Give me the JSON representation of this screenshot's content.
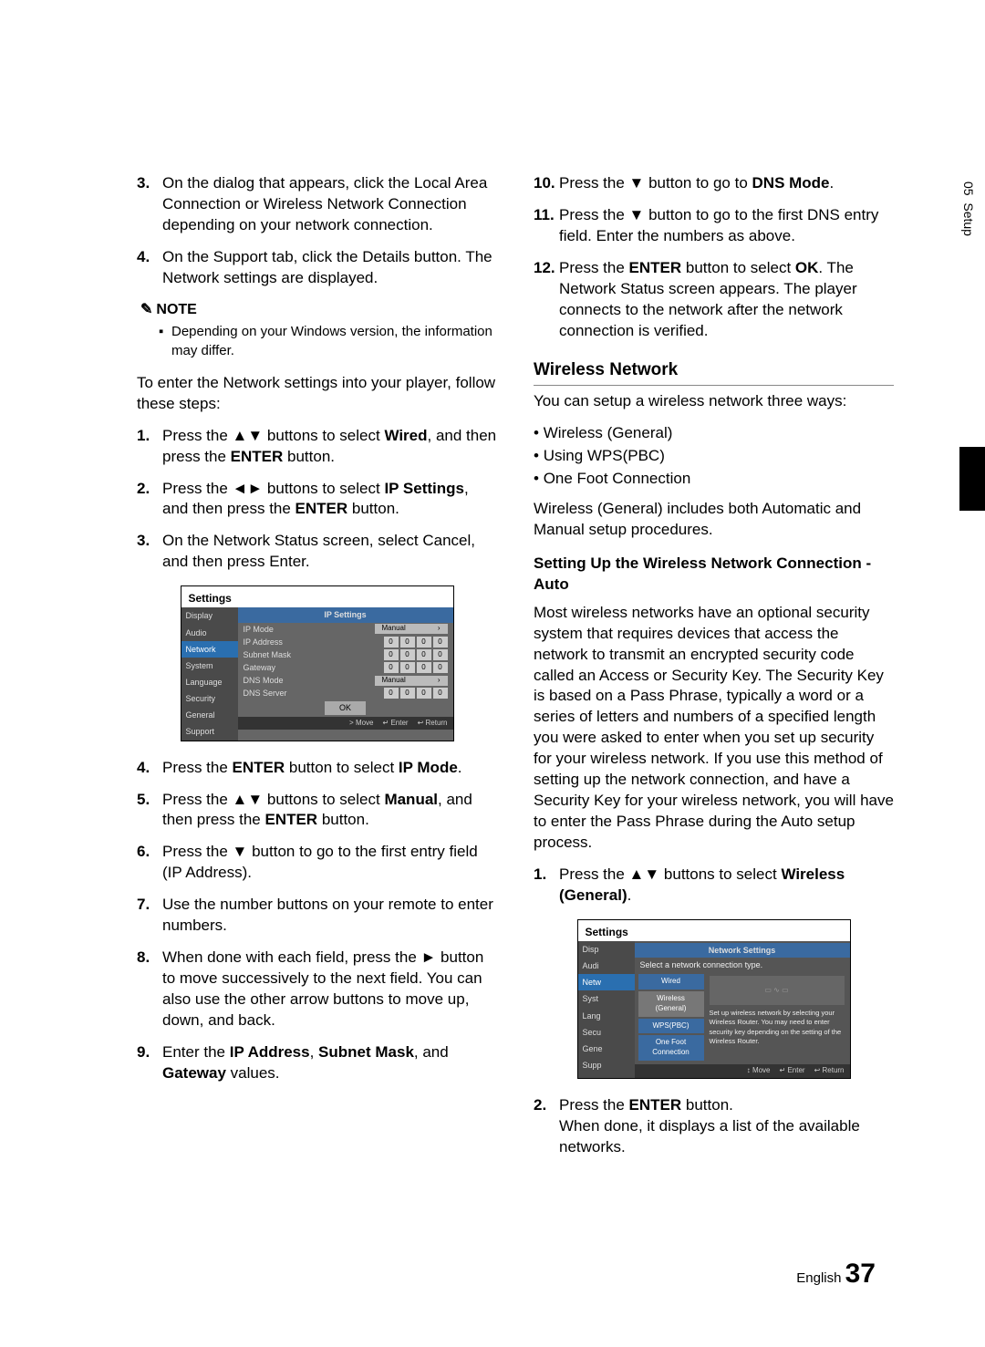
{
  "sidebar": {
    "section_num": "05",
    "section_name": "Setup"
  },
  "left": {
    "items3_4": [
      {
        "n": "3.",
        "t": "On the dialog that appears, click the Local Area Connection or Wireless Network Connection depending on your network connection."
      },
      {
        "n": "4.",
        "t": "On the Support tab, click the Details button. The Network settings are displayed."
      }
    ],
    "note_label": "NOTE",
    "note_text": "Depending on your Windows version, the information may differ.",
    "intro": "To enter the Network settings into your player, follow these steps:",
    "steps_a": [
      {
        "n": "1.",
        "html": "Press the ▲▼ buttons to select <b>Wired</b>, and then press the <b>ENTER</b> button."
      },
      {
        "n": "2.",
        "html": "Press the ◄► buttons to select <b>IP Settings</b>, and then press the <b>ENTER</b> button."
      },
      {
        "n": "3.",
        "html": "On the Network Status screen, select Cancel, and then press Enter."
      }
    ],
    "panel1": {
      "title": "Settings",
      "side": [
        "Display",
        "Audio",
        "Network",
        "System",
        "Language",
        "Security",
        "General",
        "Support"
      ],
      "side_active_index": 2,
      "banner": "IP Settings",
      "rows": [
        {
          "lbl": "IP Mode",
          "type": "manual",
          "val": "Manual"
        },
        {
          "lbl": "IP Address",
          "type": "octets",
          "o": [
            "0",
            "0",
            "0",
            "0"
          ]
        },
        {
          "lbl": "Subnet Mask",
          "type": "octets",
          "o": [
            "0",
            "0",
            "0",
            "0"
          ]
        },
        {
          "lbl": "Gateway",
          "type": "octets",
          "o": [
            "0",
            "0",
            "0",
            "0"
          ]
        },
        {
          "lbl": "DNS Mode",
          "type": "manual",
          "val": "Manual"
        },
        {
          "lbl": "DNS Server",
          "type": "octets",
          "o": [
            "0",
            "0",
            "0",
            "0"
          ]
        }
      ],
      "ok": "OK",
      "foot": [
        "> Move",
        "↵ Enter",
        "↩ Return"
      ]
    },
    "steps_b": [
      {
        "n": "4.",
        "html": "Press the <b>ENTER</b> button to select <b>IP Mode</b>."
      },
      {
        "n": "5.",
        "html": "Press the ▲▼ buttons to select <b>Manual</b>, and then press the <b>ENTER</b> button."
      },
      {
        "n": "6.",
        "html": "Press the ▼ button to go to the first entry field (IP Address)."
      },
      {
        "n": "7.",
        "html": "Use the number buttons on your remote to enter numbers."
      },
      {
        "n": "8.",
        "html": "When done with each field, press the ► button to move successively to the next field. You can also use the other arrow buttons to move up, down, and back."
      },
      {
        "n": "9.",
        "html": "Enter the <b>IP Address</b>, <b>Subnet Mask</b>, and <b>Gateway</b> values."
      }
    ]
  },
  "right": {
    "steps_c": [
      {
        "n": "10.",
        "html": "Press the ▼ button to go to <b>DNS Mode</b>."
      },
      {
        "n": "11.",
        "html": "Press the ▼ button to go to the first DNS entry field. Enter the numbers as above."
      },
      {
        "n": "12.",
        "html": "Press the <b>ENTER</b> button to select <b>OK</b>. The Network Status screen appears. The player connects to the network after the network connection is verified."
      }
    ],
    "wireless_hdr": "Wireless Network",
    "wireless_intro": "You can setup a wireless network three ways:",
    "wireless_bullets": [
      "Wireless (General)",
      "Using WPS(PBC)",
      "One Foot Connection"
    ],
    "wireless_para": "Wireless (General) includes both Automatic and Manual setup procedures.",
    "auto_hdr": "Setting Up the Wireless Network Connection - Auto",
    "auto_para": "Most wireless networks have an optional security system that requires devices that access the network to transmit an encrypted security code called an Access or Security Key. The Security Key is based on a Pass Phrase, typically a word or a series of letters and numbers of a specified length you were asked to enter when you set up security for your wireless network. If you use this method of setting up the network connection, and have a Security Key for your wireless network, you will have to enter the Pass Phrase during the Auto setup process.",
    "steps_d": [
      {
        "n": "1.",
        "html": "Press the ▲▼ buttons to select <b>Wireless (General)</b>."
      }
    ],
    "panel2": {
      "title": "Settings",
      "side": [
        "Disp",
        "Audi",
        "Netw",
        "Syst",
        "Lang",
        "Secu",
        "Gene",
        "Supp"
      ],
      "side_active_index": 2,
      "banner": "Network Settings",
      "msg": "Select a network connection type.",
      "opts": [
        "Wired",
        "Wireless (General)",
        "WPS(PBC)",
        "One Foot Connection"
      ],
      "opt_sel": 1,
      "desc": "Set up wireless network by selecting your Wireless Router. You may need to enter security key depending on the setting of the Wireless Router.",
      "foot": [
        "↕ Move",
        "↵ Enter",
        "↩ Return"
      ]
    },
    "steps_e": [
      {
        "n": "2.",
        "html": "Press the <b>ENTER</b> button.<br>When done, it displays a list of the available networks."
      }
    ]
  },
  "footer": {
    "lang": "English",
    "page": "37"
  }
}
